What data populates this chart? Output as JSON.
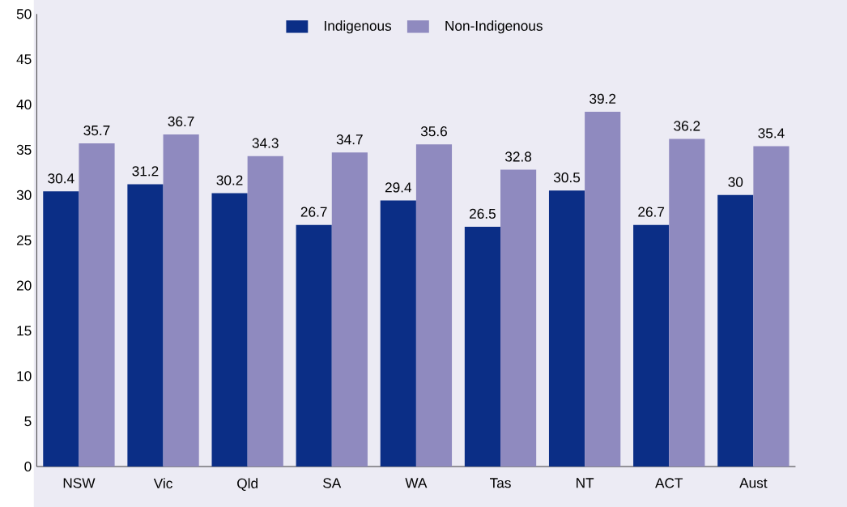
{
  "chart_data": {
    "type": "bar",
    "categories": [
      "NSW",
      "Vic",
      "Qld",
      "SA",
      "WA",
      "Tas",
      "NT",
      "ACT",
      "Aust"
    ],
    "series": [
      {
        "name": "Indigenous",
        "color": "#0b2e86",
        "values": [
          30.4,
          31.2,
          30.2,
          26.7,
          29.4,
          26.5,
          30.5,
          26.7,
          30
        ]
      },
      {
        "name": "Non-Indigenous",
        "color": "#8f8abf",
        "values": [
          35.7,
          36.7,
          34.3,
          34.7,
          35.6,
          32.8,
          39.2,
          36.2,
          35.4
        ]
      }
    ],
    "ylim": [
      0,
      50
    ],
    "yticks": [
      0,
      5,
      10,
      15,
      20,
      25,
      30,
      35,
      40,
      45,
      50
    ],
    "data_labels": true,
    "legend": "top",
    "grid": false
  }
}
